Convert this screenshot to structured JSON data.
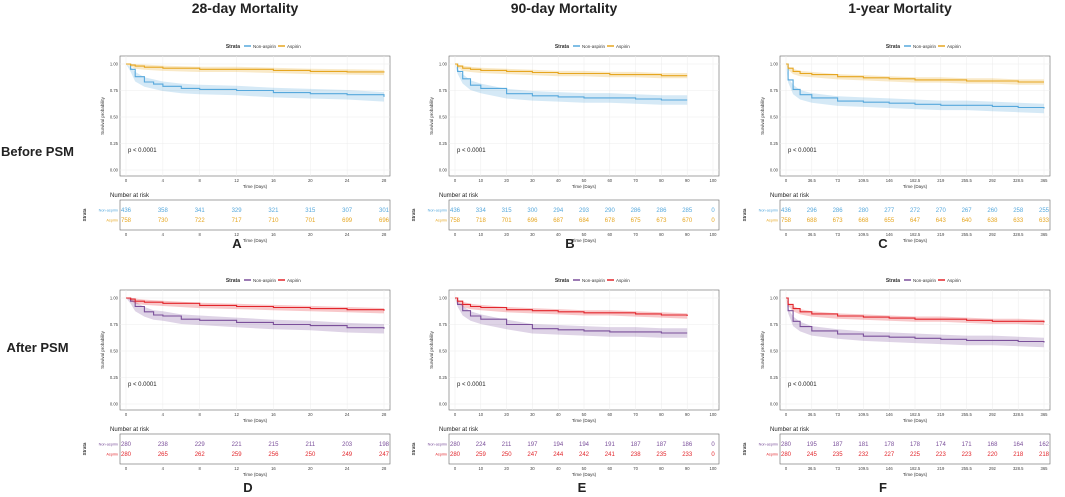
{
  "column_titles": [
    "28-day Mortality",
    "90-day Mortality",
    "1-year Mortality"
  ],
  "row_titles": [
    "Before PSM",
    "After PSM"
  ],
  "common": {
    "ylabel": "Survival probability",
    "xlabel": "Time (Days)",
    "strata_label": "Strata",
    "risk_title": "Number at risk",
    "y_ticks": [
      "0.00",
      "0.25",
      "0.50",
      "0.75",
      "1.00"
    ]
  },
  "colors": {
    "before_nonaspirin": "#56a8dc",
    "before_aspirin": "#e6a620",
    "after_nonaspirin": "#7a4f9a",
    "after_aspirin": "#e2252b"
  },
  "chart_data": [
    {
      "panel": "A",
      "type": "line",
      "title": "28-day Mortality",
      "row": "Before PSM",
      "legend": [
        "Non-aspirin",
        "Aspirin"
      ],
      "pvalue": "p < 0.0001",
      "x_ticks": [
        "0",
        "4",
        "8",
        "12",
        "16",
        "20",
        "24",
        "28"
      ],
      "xlim": [
        0,
        28
      ],
      "ylim": [
        0,
        1
      ],
      "series": [
        {
          "name": "Non-aspirin",
          "x": [
            0,
            0.5,
            1,
            2,
            3,
            4,
            6,
            8,
            12,
            16,
            20,
            24,
            28
          ],
          "values": [
            1,
            0.95,
            0.88,
            0.83,
            0.81,
            0.79,
            0.77,
            0.76,
            0.75,
            0.73,
            0.72,
            0.71,
            0.69
          ]
        },
        {
          "name": "Aspirin",
          "x": [
            0,
            0.5,
            1,
            2,
            4,
            8,
            12,
            16,
            20,
            24,
            28
          ],
          "values": [
            1,
            0.99,
            0.98,
            0.97,
            0.96,
            0.95,
            0.95,
            0.94,
            0.93,
            0.925,
            0.92
          ]
        }
      ],
      "risk": {
        "times": [
          "0",
          "4",
          "8",
          "12",
          "16",
          "20",
          "24",
          "28"
        ],
        "rows": [
          {
            "label": "Non-aspirin",
            "values": [
              "436",
              "358",
              "341",
              "329",
              "321",
              "315",
              "307",
              "301"
            ]
          },
          {
            "label": "Aspirin",
            "values": [
              "758",
              "730",
              "722",
              "717",
              "710",
              "701",
              "699",
              "696"
            ]
          }
        ]
      }
    },
    {
      "panel": "B",
      "type": "line",
      "title": "90-day Mortality",
      "row": "Before PSM",
      "legend": [
        "Non-aspirin",
        "Aspirin"
      ],
      "pvalue": "p < 0.0001",
      "x_ticks": [
        "0",
        "10",
        "20",
        "30",
        "40",
        "50",
        "60",
        "70",
        "80",
        "90",
        "100"
      ],
      "xlim": [
        0,
        100
      ],
      "ylim": [
        0,
        1
      ],
      "series": [
        {
          "name": "Non-aspirin",
          "x": [
            0,
            1,
            3,
            6,
            10,
            20,
            30,
            40,
            50,
            60,
            70,
            80,
            90
          ],
          "values": [
            1,
            0.93,
            0.86,
            0.8,
            0.77,
            0.72,
            0.7,
            0.69,
            0.68,
            0.68,
            0.67,
            0.66,
            0.66
          ]
        },
        {
          "name": "Aspirin",
          "x": [
            0,
            1,
            3,
            6,
            10,
            20,
            30,
            40,
            50,
            60,
            70,
            80,
            90
          ],
          "values": [
            1,
            0.98,
            0.96,
            0.95,
            0.94,
            0.93,
            0.92,
            0.91,
            0.91,
            0.9,
            0.9,
            0.89,
            0.89
          ]
        }
      ],
      "risk": {
        "times": [
          "0",
          "10",
          "20",
          "30",
          "40",
          "50",
          "60",
          "70",
          "80",
          "90",
          "100"
        ],
        "rows": [
          {
            "label": "Non-aspirin",
            "values": [
              "436",
              "334",
              "315",
              "300",
              "294",
              "293",
              "290",
              "286",
              "286",
              "285",
              "0"
            ]
          },
          {
            "label": "Aspirin",
            "values": [
              "758",
              "718",
              "701",
              "696",
              "687",
              "684",
              "678",
              "675",
              "673",
              "670",
              "0"
            ]
          }
        ]
      }
    },
    {
      "panel": "C",
      "type": "line",
      "title": "1-year Mortality",
      "row": "Before PSM",
      "legend": [
        "Non-aspirin",
        "Aspirin"
      ],
      "pvalue": "p < 0.0001",
      "x_ticks": [
        "0",
        "36.5",
        "73",
        "109.5",
        "146",
        "182.5",
        "219",
        "255.5",
        "292",
        "328.5",
        "365"
      ],
      "xlim": [
        0,
        365
      ],
      "ylim": [
        0,
        1
      ],
      "series": [
        {
          "name": "Non-aspirin",
          "x": [
            0,
            3,
            10,
            20,
            36.5,
            73,
            109.5,
            146,
            182.5,
            219,
            255.5,
            292,
            328.5,
            365
          ],
          "values": [
            1,
            0.85,
            0.76,
            0.71,
            0.68,
            0.65,
            0.64,
            0.63,
            0.62,
            0.61,
            0.61,
            0.6,
            0.59,
            0.58
          ]
        },
        {
          "name": "Aspirin",
          "x": [
            0,
            3,
            10,
            20,
            36.5,
            73,
            109.5,
            146,
            182.5,
            219,
            255.5,
            292,
            328.5,
            365
          ],
          "values": [
            1,
            0.96,
            0.93,
            0.91,
            0.9,
            0.88,
            0.87,
            0.86,
            0.85,
            0.85,
            0.84,
            0.84,
            0.83,
            0.83
          ]
        }
      ],
      "risk": {
        "times": [
          "0",
          "36.5",
          "73",
          "109.5",
          "146",
          "182.5",
          "219",
          "255.5",
          "292",
          "328.5",
          "365"
        ],
        "rows": [
          {
            "label": "Non-aspirin",
            "values": [
              "436",
              "296",
              "286",
              "280",
              "277",
              "272",
              "270",
              "267",
              "260",
              "258",
              "255"
            ]
          },
          {
            "label": "Aspirin",
            "values": [
              "758",
              "688",
              "673",
              "668",
              "655",
              "647",
              "643",
              "640",
              "638",
              "633",
              "633"
            ]
          }
        ]
      }
    },
    {
      "panel": "D",
      "type": "line",
      "title": "28-day Mortality",
      "row": "After PSM",
      "legend": [
        "Non-aspirin",
        "Aspirin"
      ],
      "pvalue": "p < 0.0001",
      "x_ticks": [
        "0",
        "4",
        "8",
        "12",
        "16",
        "20",
        "24",
        "28"
      ],
      "xlim": [
        0,
        28
      ],
      "ylim": [
        0,
        1
      ],
      "series": [
        {
          "name": "Non-aspirin",
          "x": [
            0,
            0.5,
            1,
            2,
            3,
            4,
            6,
            8,
            12,
            16,
            20,
            24,
            28
          ],
          "values": [
            1,
            0.97,
            0.92,
            0.87,
            0.84,
            0.83,
            0.8,
            0.79,
            0.77,
            0.75,
            0.74,
            0.72,
            0.71
          ]
        },
        {
          "name": "Aspirin",
          "x": [
            0,
            0.5,
            1,
            2,
            4,
            8,
            12,
            16,
            20,
            24,
            28
          ],
          "values": [
            1,
            0.99,
            0.97,
            0.96,
            0.95,
            0.93,
            0.92,
            0.91,
            0.9,
            0.89,
            0.88
          ]
        }
      ],
      "risk": {
        "times": [
          "0",
          "4",
          "8",
          "12",
          "16",
          "20",
          "24",
          "28"
        ],
        "rows": [
          {
            "label": "Non-aspirin",
            "values": [
              "280",
              "238",
              "229",
              "221",
              "215",
              "211",
              "203",
              "198"
            ]
          },
          {
            "label": "Aspirin",
            "values": [
              "280",
              "265",
              "262",
              "259",
              "256",
              "250",
              "249",
              "247"
            ]
          }
        ]
      }
    },
    {
      "panel": "E",
      "type": "line",
      "title": "90-day Mortality",
      "row": "After PSM",
      "legend": [
        "Non-aspirin",
        "Aspirin"
      ],
      "pvalue": "p < 0.0001",
      "x_ticks": [
        "0",
        "10",
        "20",
        "30",
        "40",
        "50",
        "60",
        "70",
        "80",
        "90",
        "100"
      ],
      "xlim": [
        0,
        100
      ],
      "ylim": [
        0,
        1
      ],
      "series": [
        {
          "name": "Non-aspirin",
          "x": [
            0,
            1,
            3,
            6,
            10,
            20,
            30,
            40,
            50,
            60,
            70,
            80,
            90
          ],
          "values": [
            1,
            0.94,
            0.88,
            0.83,
            0.8,
            0.75,
            0.71,
            0.7,
            0.69,
            0.68,
            0.68,
            0.67,
            0.67
          ]
        },
        {
          "name": "Aspirin",
          "x": [
            0,
            1,
            3,
            6,
            10,
            20,
            30,
            40,
            50,
            60,
            70,
            80,
            90
          ],
          "values": [
            1,
            0.97,
            0.94,
            0.92,
            0.91,
            0.89,
            0.88,
            0.87,
            0.86,
            0.86,
            0.85,
            0.84,
            0.83
          ]
        }
      ],
      "risk": {
        "times": [
          "0",
          "10",
          "20",
          "30",
          "40",
          "50",
          "60",
          "70",
          "80",
          "90",
          "100"
        ],
        "rows": [
          {
            "label": "Non-aspirin",
            "values": [
              "280",
              "224",
              "211",
              "197",
              "194",
              "194",
              "191",
              "187",
              "187",
              "186",
              "0"
            ]
          },
          {
            "label": "Aspirin",
            "values": [
              "280",
              "259",
              "250",
              "247",
              "244",
              "242",
              "241",
              "238",
              "235",
              "233",
              "0"
            ]
          }
        ]
      }
    },
    {
      "panel": "F",
      "type": "line",
      "title": "1-year Mortality",
      "row": "After PSM",
      "legend": [
        "Non-aspirin",
        "Aspirin"
      ],
      "pvalue": "p < 0.0001",
      "x_ticks": [
        "0",
        "36.5",
        "73",
        "109.5",
        "146",
        "182.5",
        "219",
        "255.5",
        "292",
        "328.5",
        "365"
      ],
      "xlim": [
        0,
        365
      ],
      "ylim": [
        0,
        1
      ],
      "series": [
        {
          "name": "Non-aspirin",
          "x": [
            0,
            3,
            10,
            20,
            36.5,
            73,
            109.5,
            146,
            182.5,
            219,
            255.5,
            292,
            328.5,
            365
          ],
          "values": [
            1,
            0.88,
            0.78,
            0.73,
            0.69,
            0.66,
            0.64,
            0.63,
            0.62,
            0.61,
            0.6,
            0.6,
            0.59,
            0.58
          ]
        },
        {
          "name": "Aspirin",
          "x": [
            0,
            3,
            10,
            20,
            36.5,
            73,
            109.5,
            146,
            182.5,
            219,
            255.5,
            292,
            328.5,
            365
          ],
          "values": [
            1,
            0.94,
            0.9,
            0.87,
            0.85,
            0.83,
            0.82,
            0.81,
            0.8,
            0.8,
            0.79,
            0.78,
            0.78,
            0.77
          ]
        }
      ],
      "risk": {
        "times": [
          "0",
          "36.5",
          "73",
          "109.5",
          "146",
          "182.5",
          "219",
          "255.5",
          "292",
          "328.5",
          "365"
        ],
        "rows": [
          {
            "label": "Non-aspirin",
            "values": [
              "280",
              "195",
              "187",
              "181",
              "178",
              "178",
              "174",
              "171",
              "168",
              "164",
              "162"
            ]
          },
          {
            "label": "Aspirin",
            "values": [
              "280",
              "245",
              "235",
              "232",
              "227",
              "225",
              "223",
              "223",
              "220",
              "218",
              "218"
            ]
          }
        ]
      }
    }
  ]
}
